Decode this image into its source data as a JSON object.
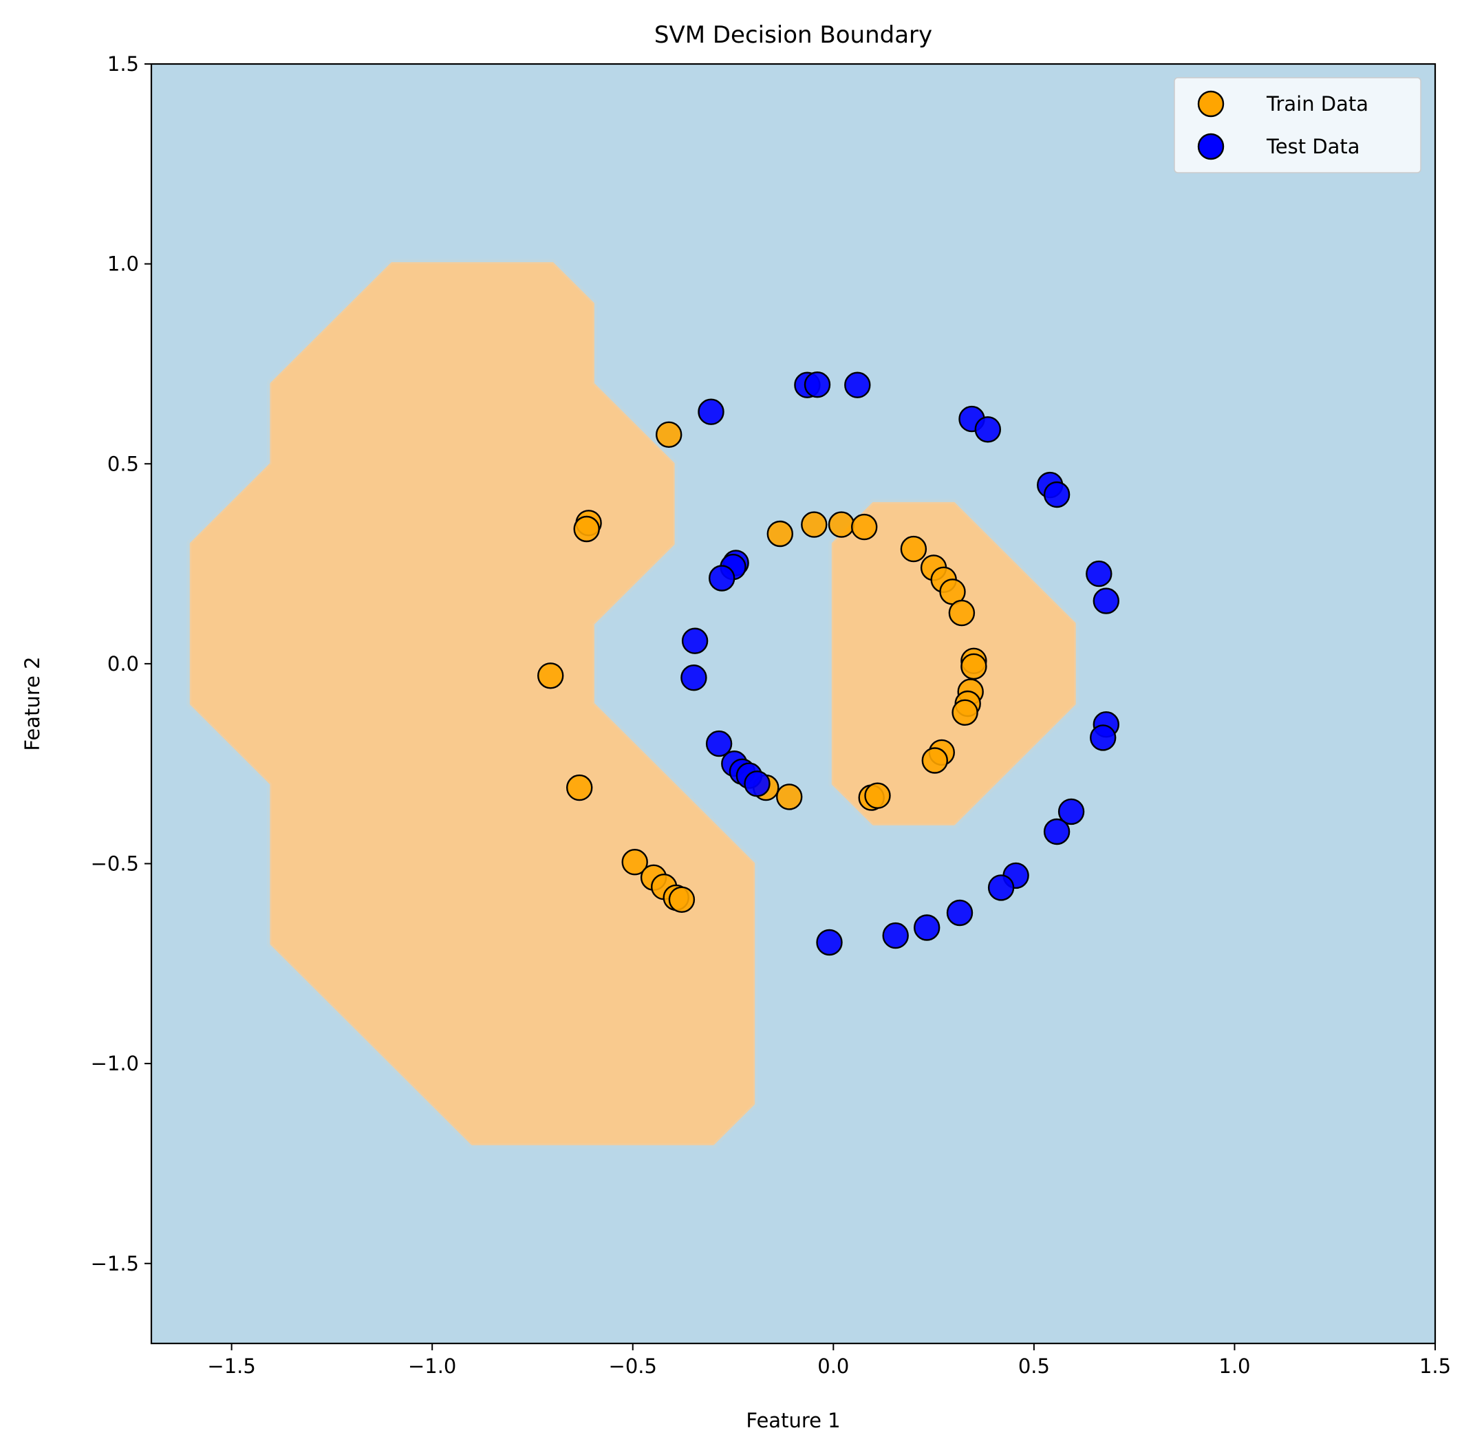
{
  "chart_data": {
    "type": "scatter",
    "title": "SVM Decision Boundary",
    "xlabel": "Feature 1",
    "ylabel": "Feature 2",
    "xlim": [
      -1.7,
      1.5
    ],
    "ylim": [
      -1.7,
      1.5
    ],
    "xticks": [
      -1.5,
      -1.0,
      -0.5,
      0.0,
      0.5,
      1.0,
      1.5
    ],
    "yticks": [
      -1.5,
      -1.0,
      -0.5,
      0.0,
      0.5,
      1.0,
      1.5
    ],
    "xtick_labels": [
      "−1.5",
      "−1.0",
      "−0.5",
      "0.0",
      "0.5",
      "1.0",
      "1.5"
    ],
    "ytick_labels": [
      "−1.5",
      "−1.0",
      "−0.5",
      "0.0",
      "0.5",
      "1.0",
      "1.5"
    ],
    "grid": false,
    "legend": {
      "position": "top-right"
    },
    "background_class_color": "#b9d7e8",
    "decision_region_color": "#f9ca8e",
    "decision_regions": [
      [
        [
          -1.1,
          1.0
        ],
        [
          -0.7,
          1.0
        ],
        [
          -0.6,
          0.9
        ],
        [
          -0.6,
          0.7
        ],
        [
          -0.4,
          0.5
        ],
        [
          -0.4,
          0.3
        ],
        [
          -0.6,
          0.1
        ],
        [
          -0.6,
          -0.1
        ],
        [
          -0.2,
          -0.5
        ],
        [
          -0.2,
          -1.1
        ],
        [
          -0.3,
          -1.2
        ],
        [
          -0.9,
          -1.2
        ],
        [
          -1.4,
          -0.7
        ],
        [
          -1.4,
          -0.3
        ],
        [
          -1.6,
          -0.1
        ],
        [
          -1.6,
          0.3
        ],
        [
          -1.4,
          0.5
        ],
        [
          -1.4,
          0.7
        ]
      ],
      [
        [
          0.0,
          0.3
        ],
        [
          0.1,
          0.4
        ],
        [
          0.3,
          0.4
        ],
        [
          0.6,
          0.1
        ],
        [
          0.6,
          -0.1
        ],
        [
          0.3,
          -0.4
        ],
        [
          0.1,
          -0.4
        ],
        [
          0.0,
          -0.3
        ]
      ]
    ],
    "series": [
      {
        "name": "Train Data",
        "color": "#ffa500",
        "points": [
          [
            -0.41,
            0.573
          ],
          [
            -0.61,
            0.352
          ],
          [
            -0.615,
            0.337
          ],
          [
            -0.705,
            -0.03
          ],
          [
            -0.633,
            -0.31
          ],
          [
            -0.495,
            -0.496
          ],
          [
            -0.448,
            -0.535
          ],
          [
            -0.422,
            -0.558
          ],
          [
            -0.392,
            -0.585
          ],
          [
            -0.378,
            -0.59
          ],
          [
            -0.168,
            -0.31
          ],
          [
            -0.11,
            -0.333
          ],
          [
            -0.133,
            0.325
          ],
          [
            -0.048,
            0.348
          ],
          [
            0.02,
            0.348
          ],
          [
            0.077,
            0.342
          ],
          [
            0.2,
            0.287
          ],
          [
            0.25,
            0.24
          ],
          [
            0.275,
            0.21
          ],
          [
            0.297,
            0.18
          ],
          [
            0.32,
            0.127
          ],
          [
            0.35,
            0.007
          ],
          [
            0.35,
            -0.007
          ],
          [
            0.342,
            -0.07
          ],
          [
            0.335,
            -0.1
          ],
          [
            0.328,
            -0.122
          ],
          [
            0.27,
            -0.222
          ],
          [
            0.253,
            -0.242
          ],
          [
            0.095,
            -0.335
          ],
          [
            0.11,
            -0.33
          ]
        ]
      },
      {
        "name": "Test Data",
        "color": "#0000ff",
        "points": [
          [
            -0.065,
            0.697
          ],
          [
            -0.04,
            0.698
          ],
          [
            0.06,
            0.697
          ],
          [
            -0.305,
            0.63
          ],
          [
            0.345,
            0.612
          ],
          [
            0.385,
            0.586
          ],
          [
            0.54,
            0.447
          ],
          [
            0.557,
            0.423
          ],
          [
            0.662,
            0.225
          ],
          [
            0.68,
            0.157
          ],
          [
            -0.243,
            0.252
          ],
          [
            -0.25,
            0.242
          ],
          [
            -0.278,
            0.214
          ],
          [
            -0.345,
            0.057
          ],
          [
            -0.348,
            -0.035
          ],
          [
            -0.285,
            -0.2
          ],
          [
            -0.247,
            -0.25
          ],
          [
            -0.227,
            -0.27
          ],
          [
            -0.21,
            -0.28
          ],
          [
            -0.19,
            -0.3
          ],
          [
            0.68,
            -0.152
          ],
          [
            0.672,
            -0.185
          ],
          [
            0.593,
            -0.37
          ],
          [
            0.557,
            -0.42
          ],
          [
            0.455,
            -0.53
          ],
          [
            0.418,
            -0.56
          ],
          [
            0.315,
            -0.623
          ],
          [
            0.233,
            -0.66
          ],
          [
            0.155,
            -0.68
          ],
          [
            -0.01,
            -0.697
          ]
        ]
      }
    ]
  }
}
